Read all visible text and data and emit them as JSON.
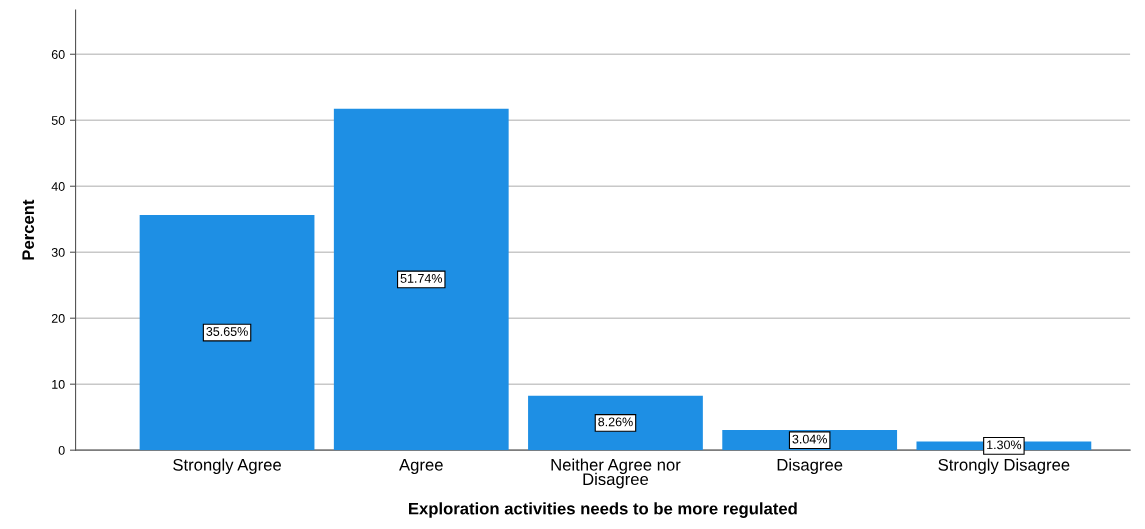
{
  "chart_data": {
    "type": "bar",
    "xlabel": "Exploration activities needs to be more regulated",
    "ylabel": "Percent",
    "categories": [
      "Strongly Agree",
      "Agree",
      "Neither Agree nor\nDisagree",
      "Disagree",
      "Strongly Disagree"
    ],
    "values": [
      35.65,
      51.74,
      8.26,
      3.04,
      1.3
    ],
    "value_labels": [
      "35.65%",
      "51.74%",
      "8.26%",
      "3.04%",
      "1.30%"
    ],
    "color": "#1e8fe4",
    "ylim": [
      0,
      66.7
    ],
    "yticks": [
      0,
      10,
      20,
      30,
      40,
      50,
      60
    ],
    "grid": "y",
    "legend": false
  }
}
